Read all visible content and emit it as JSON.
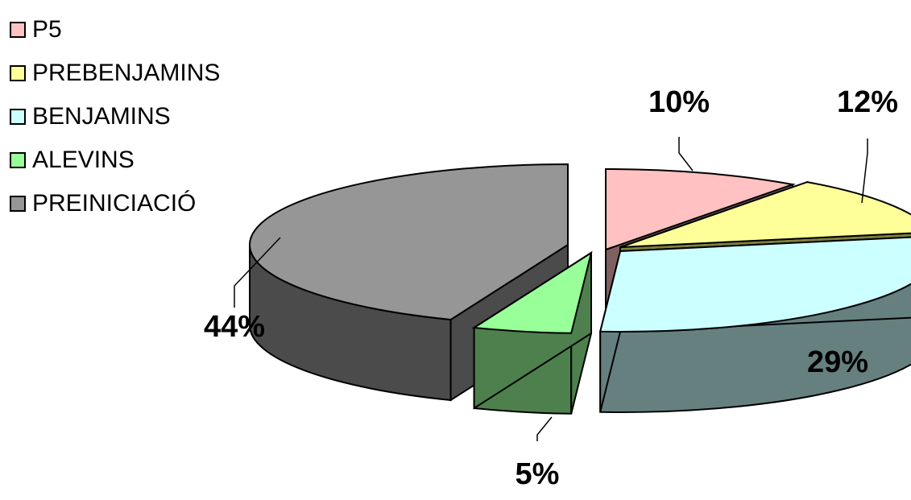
{
  "chart_data": {
    "type": "pie",
    "style": "3d-exploded",
    "legend_position": "top-left",
    "slices": [
      {
        "label": "P5",
        "value": 10,
        "display": "10%",
        "top_color": "#FFC1C1",
        "side_color": "#7F6060",
        "legend_color": "#FFC1C1"
      },
      {
        "label": "PREBENJAMINS",
        "value": 12,
        "display": "12%",
        "top_color": "#FFFF99",
        "side_color": "#808040",
        "legend_color": "#FFFF99"
      },
      {
        "label": "BENJAMINS",
        "value": 29,
        "display": "29%",
        "top_color": "#CCFFFF",
        "side_color": "#668080",
        "legend_color": "#CCFFFF"
      },
      {
        "label": "ALEVINS",
        "value": 5,
        "display": "5%",
        "top_color": "#99FF99",
        "side_color": "#4D804D",
        "legend_color": "#99FF99"
      },
      {
        "label": "PREINICIACIÓ",
        "value": 44,
        "display": "44%",
        "top_color": "#969696",
        "side_color": "#4B4B4B",
        "legend_color": "#969696"
      }
    ]
  }
}
